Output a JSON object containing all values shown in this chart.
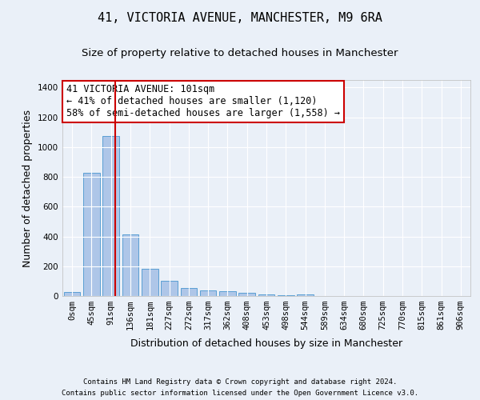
{
  "title": "41, VICTORIA AVENUE, MANCHESTER, M9 6RA",
  "subtitle": "Size of property relative to detached houses in Manchester",
  "xlabel": "Distribution of detached houses by size in Manchester",
  "ylabel": "Number of detached properties",
  "footer_line1": "Contains HM Land Registry data © Crown copyright and database right 2024.",
  "footer_line2": "Contains public sector information licensed under the Open Government Licence v3.0.",
  "bar_labels": [
    "0sqm",
    "45sqm",
    "91sqm",
    "136sqm",
    "181sqm",
    "227sqm",
    "272sqm",
    "317sqm",
    "362sqm",
    "408sqm",
    "453sqm",
    "498sqm",
    "544sqm",
    "589sqm",
    "634sqm",
    "680sqm",
    "725sqm",
    "770sqm",
    "815sqm",
    "861sqm",
    "906sqm"
  ],
  "bar_values": [
    25,
    825,
    1075,
    415,
    185,
    100,
    53,
    35,
    30,
    20,
    10,
    7,
    10,
    0,
    0,
    0,
    0,
    0,
    0,
    0,
    0
  ],
  "bar_color": "#aec6e8",
  "bar_edge_color": "#5a9fd4",
  "vline_x": 2.22,
  "vline_color": "#cc0000",
  "annotation_text": "41 VICTORIA AVENUE: 101sqm\n← 41% of detached houses are smaller (1,120)\n58% of semi-detached houses are larger (1,558) →",
  "annotation_box_color": "#ffffff",
  "annotation_box_edge": "#cc0000",
  "ylim": [
    0,
    1450
  ],
  "yticks": [
    0,
    200,
    400,
    600,
    800,
    1000,
    1200,
    1400
  ],
  "bg_color": "#eaf0f8",
  "plot_bg_color": "#eaf0f8",
  "grid_color": "#ffffff",
  "title_fontsize": 11,
  "subtitle_fontsize": 9.5,
  "xlabel_fontsize": 9,
  "ylabel_fontsize": 9,
  "tick_fontsize": 7.5,
  "annotation_fontsize": 8.5
}
